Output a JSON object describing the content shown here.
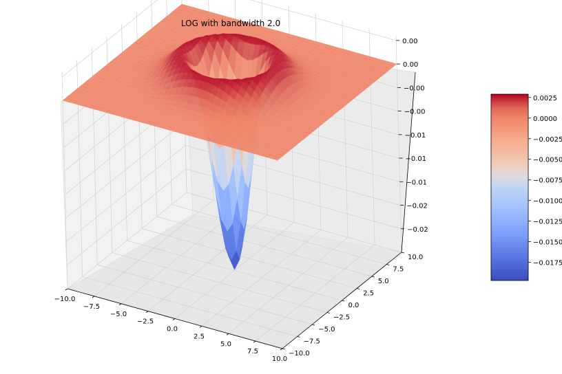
{
  "chart_data": {
    "type": "surface3d",
    "title": "LOG with bandwidth 2.0",
    "colormap": "coolwarm",
    "bandwidth": 2.0,
    "x_range": [
      -10,
      10
    ],
    "y_range": [
      -10,
      10
    ],
    "z_range": [
      -0.02,
      0.003
    ],
    "x_ticks": [
      "−10.0",
      "−7.5",
      "−5.0",
      "−2.5",
      "0.0",
      "2.5",
      "5.0",
      "7.5",
      "10.0"
    ],
    "x_tick_values": [
      -10,
      -7.5,
      -5,
      -2.5,
      0,
      2.5,
      5,
      7.5,
      10
    ],
    "y_ticks": [
      "−10.0",
      "−7.5",
      "−5.0",
      "−2.5",
      "0.0",
      "2.5",
      "5.0",
      "7.5",
      "10.0"
    ],
    "y_tick_values": [
      -10,
      -7.5,
      -5,
      -2.5,
      0,
      2.5,
      5,
      7.5,
      10
    ],
    "z_ticks": [
      "0.00",
      "0.00",
      "−0.00",
      "−0.00",
      "−0.01",
      "−0.01",
      "−0.01",
      "−0.02",
      "−0.02"
    ],
    "z_tick_values": [
      0.0025,
      0.0,
      -0.0025,
      -0.005,
      -0.0075,
      -0.01,
      -0.0125,
      -0.015,
      -0.0175
    ],
    "grid": true,
    "colorbar": {
      "ticks": [
        "0.0025",
        "0.0000",
        "−0.0025",
        "−0.0050",
        "−0.0075",
        "−0.0100",
        "−0.0125",
        "−0.0150",
        "−0.0175"
      ],
      "tick_values": [
        0.0025,
        0.0,
        -0.0025,
        -0.005,
        -0.0075,
        -0.01,
        -0.0125,
        -0.015,
        -0.0175
      ],
      "vmin": -0.0197,
      "vmax": 0.0029,
      "placement": "right"
    }
  }
}
